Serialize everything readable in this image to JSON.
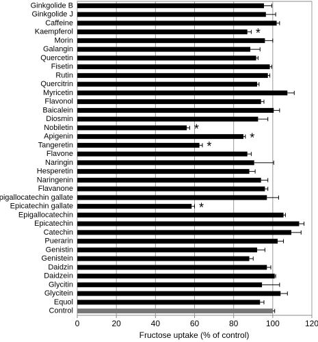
{
  "chart_data": {
    "type": "hbar",
    "x_label": "Fructose uptake (% of control)",
    "categories": [
      "Ginkgolide B",
      "Ginkgolide J",
      "Caffeine",
      "Kaempferol",
      "Morin",
      "Galangin",
      "Quercetin",
      "Fisetin",
      "Rutin",
      "Quercitrin",
      "Myricetin",
      "Flavonol",
      "Baicalein",
      "Diosmin",
      "Nobiletin",
      "Apigenin",
      "Tangeretin",
      "Flavone",
      "Naringin",
      "Hesperetin",
      "Naringenin",
      "Flavanone",
      "Epigallocatechin gallate",
      "Epicatechin gallate",
      "Epigallocatechin",
      "Epicatechin",
      "Catechin",
      "Puerarin",
      "Genistin",
      "Genistein",
      "Daidzin",
      "Daidzein",
      "Glycitin",
      "Glycitein",
      "Equol",
      "Control"
    ],
    "values": [
      95.5,
      96.5,
      102,
      87,
      96,
      88.5,
      91.5,
      98.5,
      97.5,
      92,
      107.5,
      94,
      100.5,
      92.5,
      56,
      85,
      62.5,
      87,
      90.5,
      88,
      94,
      96,
      97,
      58.5,
      105.5,
      113.5,
      109.5,
      102.5,
      92,
      88,
      97,
      101,
      94.5,
      104,
      93.5,
      100
    ],
    "errors": [
      4,
      5,
      1.5,
      2,
      4,
      5,
      1,
      1,
      1,
      1,
      3.5,
      1.5,
      3,
      5,
      1.5,
      1,
      1.5,
      2,
      10,
      3,
      3.5,
      1.5,
      6,
      1.5,
      1,
      2.5,
      5,
      3,
      4,
      2,
      2,
      0.5,
      9,
      3.5,
      2,
      1
    ],
    "markers": [
      null,
      null,
      null,
      "*",
      null,
      null,
      null,
      null,
      null,
      null,
      null,
      null,
      null,
      null,
      "*",
      "*",
      "*",
      null,
      null,
      null,
      null,
      null,
      null,
      "*",
      null,
      null,
      null,
      null,
      null,
      null,
      null,
      null,
      null,
      null,
      null,
      null
    ],
    "colors": [
      "#000",
      "#000",
      "#000",
      "#000",
      "#000",
      "#000",
      "#000",
      "#000",
      "#000",
      "#000",
      "#000",
      "#000",
      "#000",
      "#000",
      "#000",
      "#000",
      "#000",
      "#000",
      "#000",
      "#000",
      "#000",
      "#000",
      "#000",
      "#000",
      "#000",
      "#000",
      "#000",
      "#000",
      "#000",
      "#000",
      "#000",
      "#000",
      "#000",
      "#000",
      "#000",
      "#777"
    ],
    "xlim": [
      0,
      120
    ],
    "xticks": [
      0,
      20,
      40,
      60,
      80,
      100,
      120
    ],
    "grid": true
  }
}
